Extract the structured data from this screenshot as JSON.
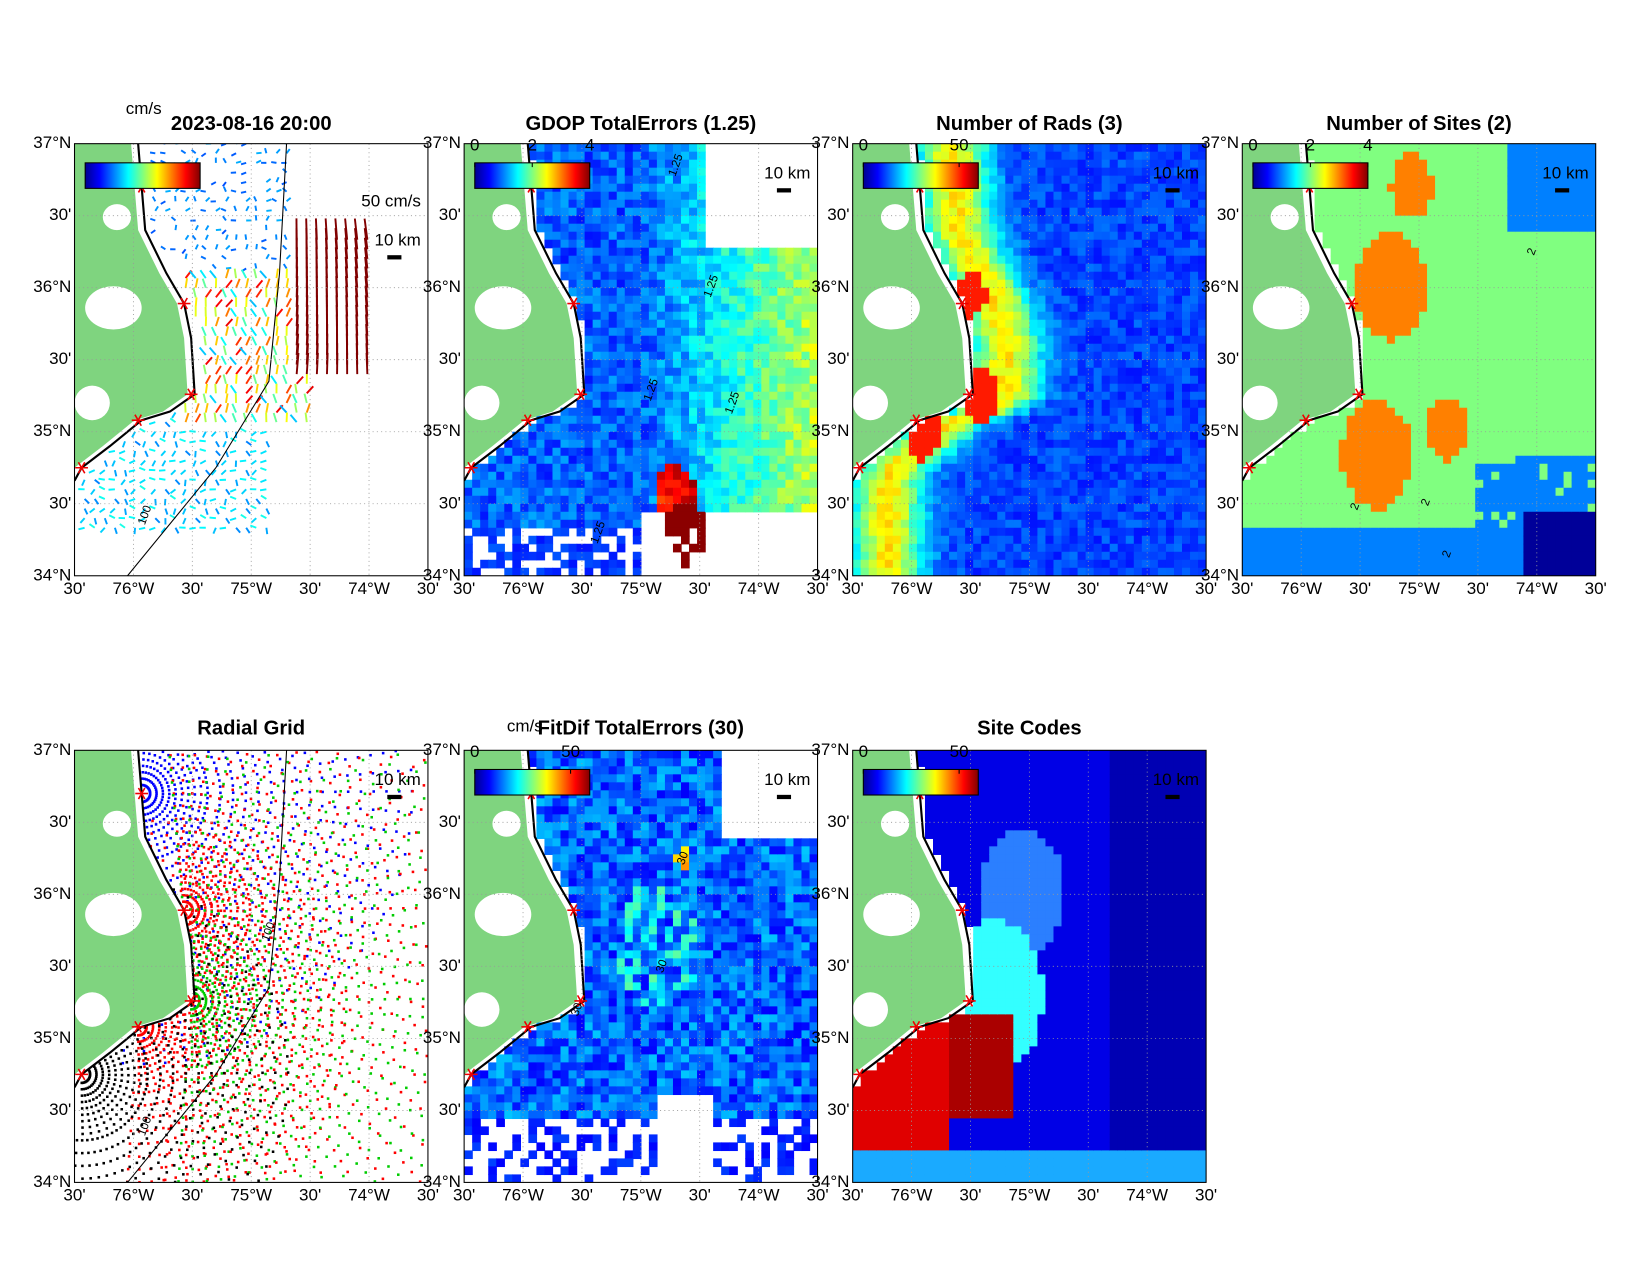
{
  "panels": [
    {
      "title": "2023-08-16 20:00",
      "unit": "cm/s",
      "scale_label": "50 cm/s",
      "distance": "10 km",
      "contour_labels": [
        "100"
      ]
    },
    {
      "title": "GDOP TotalErrors (1.25)",
      "colorbar_ticks": [
        0,
        2,
        4
      ],
      "clim": [
        0,
        4
      ],
      "distance": "10 km",
      "contour_labels": [
        "1.25",
        "1.25",
        "1.25",
        "1.25",
        "1.25"
      ]
    },
    {
      "title": "Number of Rads (3)",
      "colorbar_ticks": [
        0,
        50
      ],
      "clim": [
        0,
        60
      ],
      "distance": "10 km"
    },
    {
      "title": "Number of Sites (2)",
      "colorbar_ticks": [
        0,
        2,
        4
      ],
      "clim": [
        0,
        4
      ],
      "distance": "10 km",
      "contour_labels": [
        "2",
        "2",
        "2",
        "2"
      ]
    },
    {
      "title": "Radial Grid",
      "distance": "10 km",
      "contour_labels": [
        "100",
        "100"
      ]
    },
    {
      "title": "FitDif TotalErrors (30)",
      "unit": "cm/s",
      "colorbar_ticks": [
        0,
        50
      ],
      "clim": [
        0,
        60
      ],
      "distance": "10 km",
      "contour_labels": [
        "30",
        "30",
        "30"
      ]
    },
    {
      "title": "Site Codes",
      "colorbar_ticks": [
        0,
        50
      ],
      "clim": [
        0,
        60
      ],
      "distance": "10 km"
    }
  ],
  "lat_labels": [
    "37°N",
    "30'",
    "36°N",
    "30'",
    "35°N",
    "30'",
    "34°N"
  ],
  "lon_labels": [
    "30'",
    "76°W",
    "30'",
    "75°W",
    "30'",
    "74°W",
    "30'"
  ]
}
